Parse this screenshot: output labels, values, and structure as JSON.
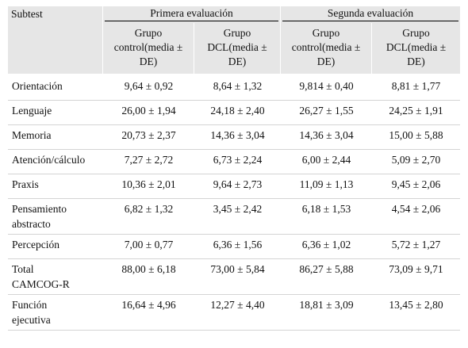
{
  "header": {
    "subtest": "Subtest",
    "group1": "Primera evaluación",
    "group2": "Segunda evaluación",
    "subcols": [
      [
        "Grupo",
        "control(media ±",
        "DE)"
      ],
      [
        "Grupo",
        "DCL(media ±",
        "DE)"
      ],
      [
        "Grupo",
        "control(media ±",
        "DE)"
      ],
      [
        "Grupo",
        "DCL(media ±",
        "DE)"
      ]
    ]
  },
  "rows": [
    {
      "name": [
        "Orientación"
      ],
      "values": [
        "9,64 ± 0,92",
        "8,64 ± 1,32",
        "9,814 ± 0,40",
        "8,81 ± 1,77"
      ]
    },
    {
      "name": [
        "Lenguaje"
      ],
      "values": [
        "26,00 ± 1,94",
        "24,18 ± 2,40",
        "26,27 ± 1,55",
        "24,25 ± 1,91"
      ]
    },
    {
      "name": [
        "Memoria"
      ],
      "values": [
        "20,73 ± 2,37",
        "14,36 ± 3,04",
        "14,36 ± 3,04",
        "15,00 ± 5,88"
      ]
    },
    {
      "name": [
        "Atención/cálculo"
      ],
      "values": [
        "7,27 ± 2,72",
        "6,73 ± 2,24",
        "6,00 ± 2,44",
        "5,09 ± 2,70"
      ]
    },
    {
      "name": [
        "Praxis"
      ],
      "values": [
        "10,36 ± 2,01",
        "9,64 ± 2,73",
        "11,09 ± 1,13",
        "9,45 ± 2,06"
      ]
    },
    {
      "name": [
        "Pensamiento",
        "abstracto"
      ],
      "values": [
        "6,82 ± 1,32",
        "3,45 ± 2,42",
        "6,18 ± 1,53",
        "4,54 ± 2,06"
      ]
    },
    {
      "name": [
        "Percepción"
      ],
      "values": [
        "7,00 ± 0,77",
        "6,36 ± 1,56",
        "6,36 ± 1,02",
        "5,72 ± 1,27"
      ]
    },
    {
      "name": [
        "Total",
        "CAMCOG-R"
      ],
      "values": [
        "88,00 ± 6,18",
        "73,00 ± 5,84",
        "86,27 ± 5,88",
        "73,09 ± 9,71"
      ]
    },
    {
      "name": [
        "Función",
        "ejecutiva"
      ],
      "values": [
        "16,64 ± 4,96",
        "12,27 ± 4,40",
        "18,81 ± 3,09",
        "13,45 ± 2,80"
      ]
    }
  ]
}
